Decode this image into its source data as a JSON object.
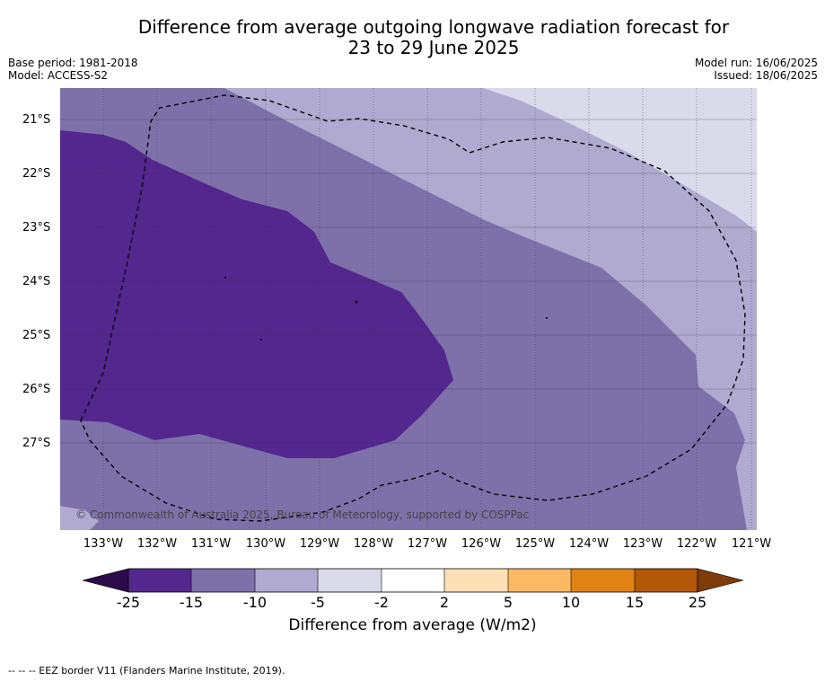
{
  "title_line1": "Difference from average outgoing longwave radiation forecast for",
  "title_line2": "23 to 29 June 2025",
  "base_period": "Base period: 1981-2018",
  "model": "Model: ACCESS-S2",
  "model_run": "Model run: 16/06/2025",
  "issued": "Issued: 18/06/2025",
  "copyright": "© Commonwealth of Australia 2025, Bureau of Meteorology, supported by COSPPac",
  "footer": "--  --  -- EEZ border V11 (Flanders Marine Institute, 2019).",
  "lat_labels": [
    "21°S",
    "22°S",
    "23°S",
    "24°S",
    "25°S",
    "26°S",
    "27°S"
  ],
  "lon_labels": [
    "133°W",
    "132°W",
    "131°W",
    "130°W",
    "129°W",
    "128°W",
    "127°W",
    "126°W",
    "125°W",
    "124°W",
    "123°W",
    "122°W",
    "121°W"
  ],
  "colorbar": {
    "title": "Difference from average (W/m2)",
    "ticks": [
      "-25",
      "-15",
      "-10",
      "-5",
      "-2",
      "2",
      "5",
      "10",
      "15",
      "25"
    ],
    "colors": [
      "#2d0b4a",
      "#54278f",
      "#7e71aa",
      "#b0aad0",
      "#dadaeb",
      "#ffffff",
      "#fee0b6",
      "#fdb863",
      "#e08214",
      "#b35806",
      "#7f3b08"
    ]
  },
  "map_colors": {
    "level_minus15_to_minus25": "#54278f",
    "level_minus10_to_minus15": "#7e71aa",
    "level_minus5_to_minus10": "#b0aad0",
    "level_minus2_to_minus5": "#dadaeb"
  }
}
